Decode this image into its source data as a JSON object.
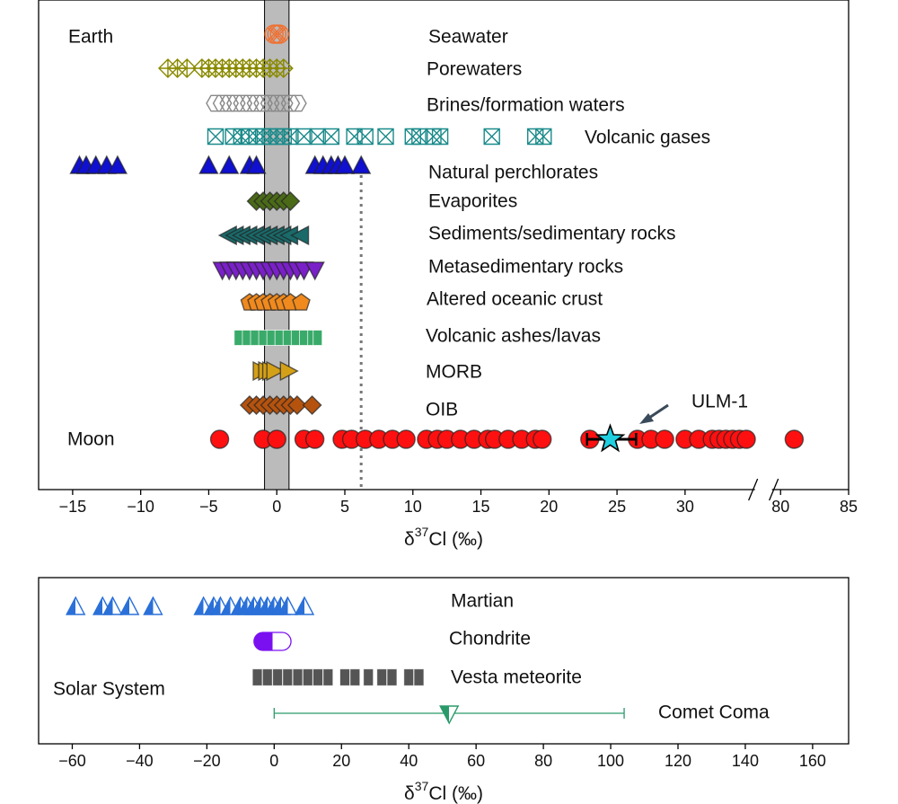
{
  "chart_data": [
    {
      "type": "strip",
      "group_label": "Earth",
      "xlim": [
        -17.5,
        85
      ],
      "x_break": [
        35,
        79.5
      ],
      "xticks": [
        {
          "value": -15,
          "label": "−15"
        },
        {
          "value": -10,
          "label": "−10"
        },
        {
          "value": -5,
          "label": "−5"
        },
        0,
        5,
        10,
        15,
        20,
        25,
        30,
        80,
        85
      ],
      "xlabel": {
        "symbol": "δ",
        "isotope": "37",
        "rest": "Cl (‰)"
      },
      "shaded_range": [
        -0.9,
        0.9
      ],
      "reference_line": 6.2,
      "series": [
        {
          "name": "Seawater",
          "marker": "circle-x",
          "color": "#f07030",
          "style": "open",
          "values": [
            -0.2,
            0,
            0.2
          ]
        },
        {
          "name": "Porewaters",
          "marker": "diamond-plus",
          "color": "#8a8a00",
          "style": "open",
          "values": [
            -8,
            -7.3,
            -6.6,
            -5.5,
            -5,
            -4.5,
            -4,
            -3.5,
            -3,
            -2.5,
            -2,
            -1.5,
            -1,
            -0.5,
            0,
            0.5
          ]
        },
        {
          "name": "Brines/formation waters",
          "marker": "hexagon",
          "color": "#888888",
          "style": "open",
          "values": [
            -4.5,
            -4,
            -3.5,
            -3,
            -2.5,
            -2,
            -1.5,
            -1,
            -0.5,
            0,
            0.5,
            1,
            1.5
          ]
        },
        {
          "name": "Volcanic gases",
          "marker": "square-x",
          "color": "#1a8a8a",
          "style": "open",
          "values": [
            -4.5,
            -3.2,
            -2.6,
            -2,
            -1.5,
            -1,
            -0.5,
            0,
            0.5,
            1,
            2,
            3,
            4,
            5.7,
            6.5,
            8,
            10,
            10.5,
            11.5,
            12,
            15.8,
            19,
            19.6
          ]
        },
        {
          "name": "Natural perchlorates",
          "marker": "triangle-up",
          "color": "#1010d0",
          "style": "filled",
          "values": [
            -14.5,
            -14,
            -13.3,
            -12.5,
            -11.7,
            -5,
            -3.5,
            -2,
            -1.5,
            2.8,
            3.4,
            4,
            4.5,
            5,
            6.2
          ]
        },
        {
          "name": "Evaporites",
          "marker": "diamond",
          "color": "#4a6a18",
          "style": "filled",
          "values": [
            -1.5,
            -1,
            -0.5,
            0,
            0.5,
            1
          ]
        },
        {
          "name": "Sediments/sedimentary rocks",
          "marker": "triangle-left",
          "color": "#1a6a6a",
          "style": "filled",
          "values": [
            -3.5,
            -3,
            -2.5,
            -2,
            -1.5,
            -1,
            -0.5,
            0,
            0.5,
            1,
            1.8
          ]
        },
        {
          "name": "Metasedimentary rocks",
          "marker": "triangle-down",
          "color": "#7a20c8",
          "style": "filled",
          "values": [
            -4,
            -3.5,
            -3,
            -2.5,
            -2,
            -1.5,
            -1,
            -0.5,
            0,
            0.5,
            1,
            1.5,
            2,
            2.8
          ]
        },
        {
          "name": "Altered oceanic crust",
          "marker": "pentagon",
          "color": "#f08a1e",
          "style": "filled",
          "values": [
            -2,
            -1.5,
            -1,
            -0.5,
            0,
            0.5,
            1,
            1.8
          ]
        },
        {
          "name": "Volcanic ashes/lavas",
          "marker": "rect",
          "color": "#3aaa6a",
          "style": "filled",
          "values": [
            -2.8,
            -2.2,
            -1.6,
            -1,
            -0.4,
            0.2,
            0.8,
            1.4,
            2,
            2.6,
            3
          ]
        },
        {
          "name": "MORB",
          "marker": "triangle-right",
          "color": "#d4a017",
          "style": "filled",
          "values": [
            -1.2,
            -0.8,
            -0.5,
            -0.2,
            0.8
          ]
        },
        {
          "name": "OIB",
          "marker": "diamond",
          "color": "#b5530e",
          "style": "filled",
          "values": [
            -2,
            -1.5,
            -1,
            -0.5,
            0,
            0.5,
            1,
            1.5,
            2.6
          ]
        },
        {
          "name": "Moon",
          "marker": "circle",
          "color": "#ff1010",
          "style": "filled",
          "values": [
            -4.2,
            -1,
            0,
            2,
            2.8,
            4.8,
            5.5,
            6.5,
            7.5,
            8.5,
            9.5,
            11,
            11.8,
            12.5,
            13.5,
            14.5,
            15.5,
            16,
            17,
            18,
            19,
            19.5,
            23,
            26.5,
            27.5,
            28.5,
            30,
            31,
            32,
            32.5,
            33,
            33.5,
            34,
            34.5,
            81
          ]
        }
      ],
      "highlight": {
        "name": "ULM-1",
        "value": 24.5,
        "error_low": 1.7,
        "error_high": 1.9,
        "color": "#20d0e0"
      }
    },
    {
      "type": "strip",
      "group_label": "Solar System",
      "xlim": [
        -70,
        170.7
      ],
      "xticks": [
        {
          "value": -60,
          "label": "−60"
        },
        {
          "value": -40,
          "label": "−40"
        },
        {
          "value": -20,
          "label": "−20"
        },
        0,
        20,
        40,
        60,
        80,
        100,
        120,
        140,
        160
      ],
      "xlabel": {
        "symbol": "δ",
        "isotope": "37",
        "rest": "Cl (‰)"
      },
      "series": [
        {
          "name": "Martian",
          "marker": "triangle-up",
          "color": "#2a70d8",
          "style": "half",
          "values": [
            -59,
            -51,
            -48,
            -43,
            -36,
            -21,
            -18,
            -16,
            -13,
            -10,
            -8,
            -6,
            -4,
            -2,
            0,
            2,
            4,
            9
          ]
        },
        {
          "name": "Chondrite",
          "marker": "capsule",
          "color": "#7a10f0",
          "style": "half",
          "values": [
            -6,
            5
          ]
        },
        {
          "name": "Vesta meteorite",
          "marker": "rect",
          "color": "#555555",
          "style": "filled",
          "values": [
            -5,
            -2,
            1,
            4,
            7,
            10,
            13,
            16,
            21,
            24,
            28,
            32,
            35,
            40,
            43
          ]
        },
        {
          "name": "Comet Coma",
          "marker": "triangle-down",
          "color": "#2a9a6a",
          "style": "half",
          "values": [
            52
          ],
          "errors": [
            52
          ]
        }
      ]
    }
  ]
}
